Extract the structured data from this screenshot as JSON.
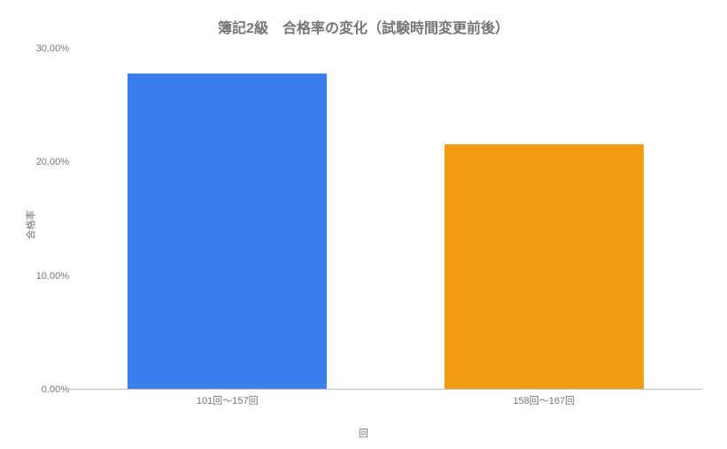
{
  "chart": {
    "type": "bar",
    "title": "簿記2級　合格率の変化（試験時間変更前後）",
    "title_fontsize": 16,
    "title_color": "#757575",
    "xlabel": "回",
    "ylabel": "合格率",
    "label_fontsize": 11,
    "label_color": "#757575",
    "categories": [
      "101回～157回",
      "158回～167回"
    ],
    "values": [
      27.8,
      21.6
    ],
    "bar_colors": [
      "#3b7ded",
      "#f39c12"
    ],
    "ylim": [
      0,
      30
    ],
    "ytick_step": 10,
    "yticks": [
      {
        "pos": 0,
        "label": "0.00%"
      },
      {
        "pos": 10,
        "label": "10.00%"
      },
      {
        "pos": 20,
        "label": "20.00%"
      },
      {
        "pos": 30,
        "label": "30.00%"
      }
    ],
    "tick_fontsize": 11,
    "tick_color": "#757575",
    "background_color": "#ffffff",
    "baseline_color": "#bdbdbd",
    "bar_width": 0.63
  }
}
